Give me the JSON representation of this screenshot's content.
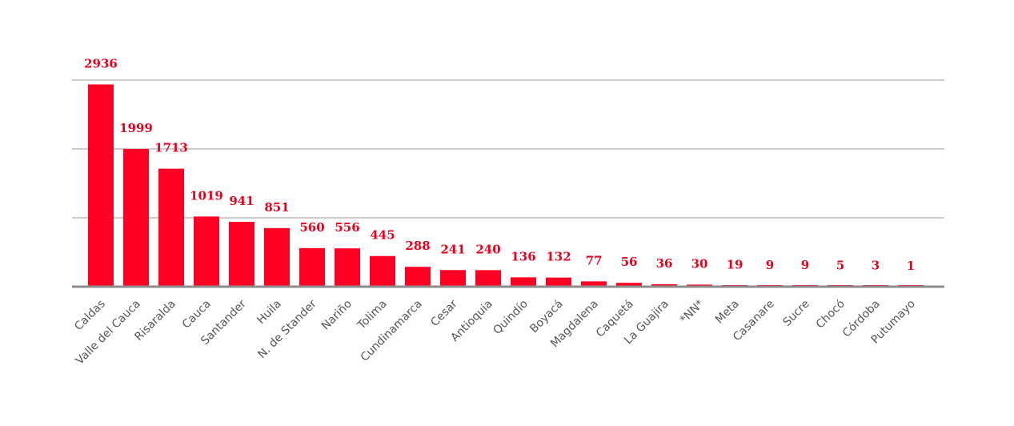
{
  "chart_data": {
    "type": "bar",
    "categories": [
      "Caldas",
      "Valle del Cauca",
      "Risaralda",
      "Cauca",
      "Santander",
      "Huila",
      "N. de Stander",
      "Nariño",
      "Tolima",
      "Cundinamarca",
      "Cesar",
      "Antioquia",
      "Quindío",
      "Boyacá",
      "Magdalena",
      "Caquetá",
      "La Guajira",
      "*NN*",
      "Meta",
      "Casanare",
      "Sucre",
      "Chocó",
      "Córdoba",
      "Putumayo"
    ],
    "values": [
      2936,
      1999,
      1713,
      1019,
      941,
      851,
      560,
      556,
      445,
      288,
      241,
      240,
      136,
      132,
      77,
      56,
      36,
      30,
      19,
      9,
      9,
      5,
      3,
      1
    ],
    "data_labels": [
      "2936",
      "1999",
      "1713",
      "1019",
      "941",
      "851",
      "560",
      "556",
      "445",
      "288",
      "241",
      "240",
      "136",
      "132",
      "77",
      "56",
      "36",
      "30",
      "19",
      "9",
      "9",
      "5",
      "3",
      "1"
    ],
    "title": "",
    "xlabel": "",
    "ylabel": "",
    "ylim": [
      0,
      3000
    ],
    "gridlines": [
      1000,
      2000,
      3000
    ],
    "grid": true,
    "legend": "none",
    "bar_color": "#ff0022",
    "label_color": "#e8001c"
  }
}
